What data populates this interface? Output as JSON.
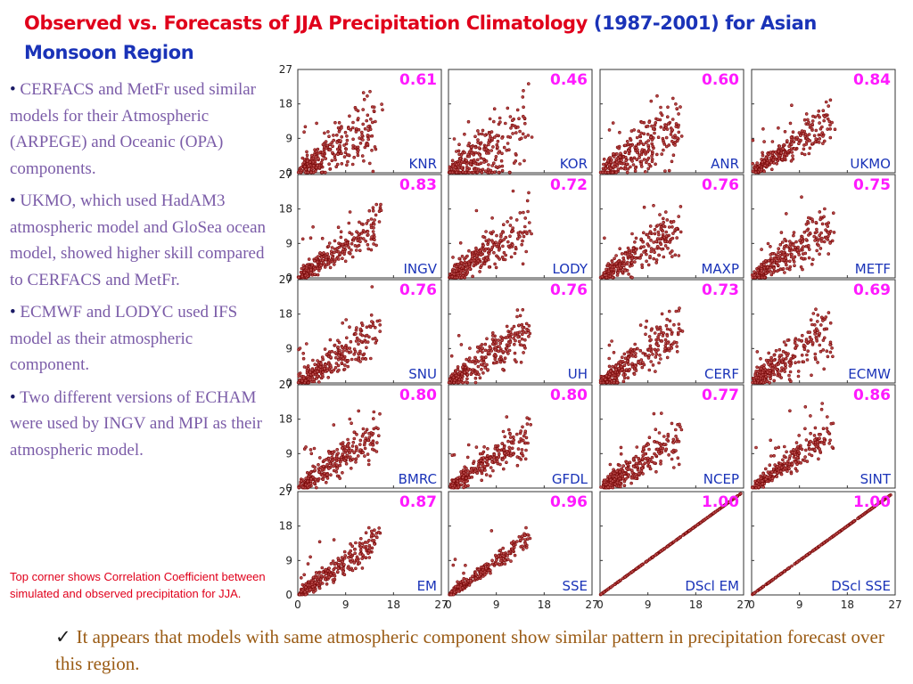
{
  "header": {
    "title_part1": "Observed vs. Forecasts of  JJA Precipitation Climatology ",
    "title_part2": "(1987-2001) for  Asian Monsoon Region"
  },
  "bullets": [
    "CERFACS and MetFr used similar models for their Atmospheric (ARPEGE) and Oceanic (OPA) components.",
    "UKMO, which used HadAM3 atmospheric model and GloSea ocean model, showed higher skill compared to CERFACS and MetFr.",
    "ECMWF and LODYC used IFS model as their atmospheric component.",
    "Two different versions of ECHAM were used by INGV and MPI as their atmospheric model."
  ],
  "caption": "Top corner shows Correlation Coefficient between simulated  and observed precipitation for JJA.",
  "conclusion": "It appears that models with same atmospheric component show similar pattern in precipitation forecast over this region.",
  "chart_data": {
    "type": "scatter",
    "layout": "5x4 grid of small-multiple scatter panels",
    "xlim": [
      0,
      27
    ],
    "ylim": [
      0,
      27
    ],
    "x_ticks": [
      0,
      9,
      18,
      27
    ],
    "y_ticks": [
      0,
      9,
      18,
      27
    ],
    "point_color": "#7a0a0a",
    "correlation_color": "#ff1aff",
    "label_color": "#1a33b8",
    "panels": [
      {
        "label": "KNR",
        "correlation": "0.61"
      },
      {
        "label": "KOR",
        "correlation": "0.46"
      },
      {
        "label": "ANR",
        "correlation": "0.60"
      },
      {
        "label": "UKMO",
        "correlation": "0.84"
      },
      {
        "label": "INGV",
        "correlation": "0.83"
      },
      {
        "label": "LODY",
        "correlation": "0.72"
      },
      {
        "label": "MAXP",
        "correlation": "0.76"
      },
      {
        "label": "METF",
        "correlation": "0.75"
      },
      {
        "label": "SNU",
        "correlation": "0.76"
      },
      {
        "label": "UH",
        "correlation": "0.76"
      },
      {
        "label": "CERF",
        "correlation": "0.73"
      },
      {
        "label": "ECMW",
        "correlation": "0.69"
      },
      {
        "label": "BMRC",
        "correlation": "0.80"
      },
      {
        "label": "GFDL",
        "correlation": "0.80"
      },
      {
        "label": "NCEP",
        "correlation": "0.77"
      },
      {
        "label": "SINT",
        "correlation": "0.86"
      },
      {
        "label": "EM",
        "correlation": "0.87"
      },
      {
        "label": "SSE",
        "correlation": "0.96"
      },
      {
        "label": "DScl  EM",
        "correlation": "1.00"
      },
      {
        "label": "DScl  SSE",
        "correlation": "1.00"
      }
    ]
  }
}
